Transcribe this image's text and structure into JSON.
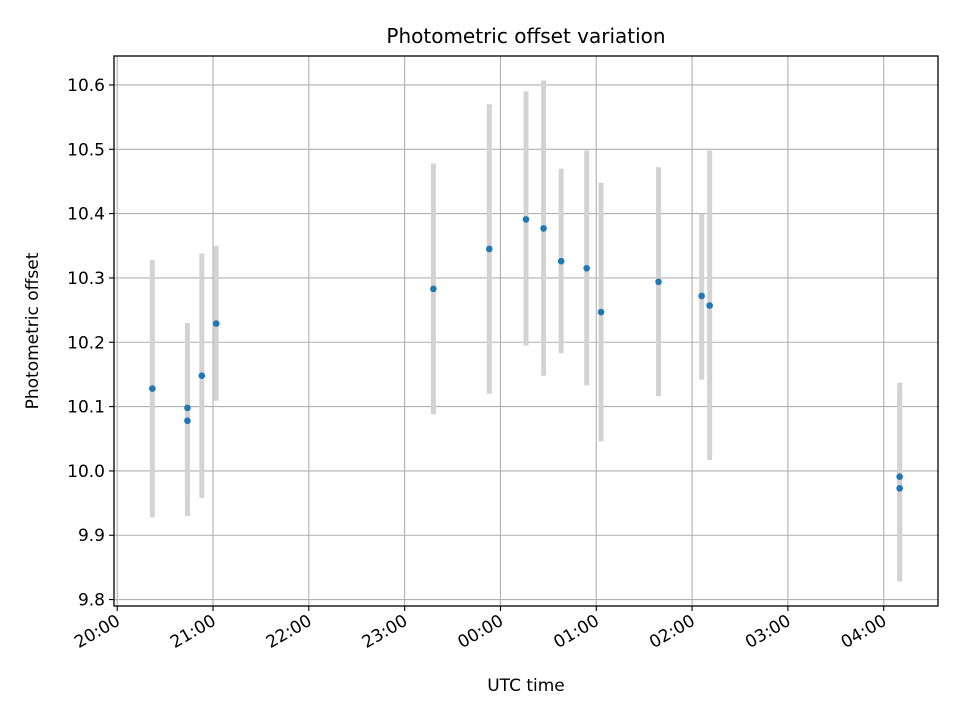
{
  "chart_data": {
    "type": "scatter",
    "title": "Photometric offset variation",
    "xlabel": "UTC time",
    "ylabel": "Photometric offset",
    "x_axis_type": "time",
    "x_start_date": "2021-01-01",
    "xlim": [
      "2021-01-01T19:58",
      "2021-01-02T04:34"
    ],
    "ylim": [
      9.79,
      10.645
    ],
    "x_ticks": [
      "20:00",
      "21:00",
      "22:00",
      "23:00",
      "00:00",
      "01:00",
      "02:00",
      "03:00",
      "04:00"
    ],
    "y_ticks": [
      "9.8",
      "9.9",
      "10.0",
      "10.1",
      "10.2",
      "10.3",
      "10.4",
      "10.5",
      "10.6"
    ],
    "grid": true,
    "marker_color": "#1f77b4",
    "errorbar_color": "#d3d3d3",
    "points": [
      {
        "x": "2021-01-01T20:22",
        "y": 10.128,
        "ylow": 9.928,
        "yhigh": 10.328
      },
      {
        "x": "2021-01-01T20:44",
        "y": 10.098,
        "ylow": 9.93,
        "yhigh": 10.23
      },
      {
        "x": "2021-01-01T20:44",
        "y": 10.078,
        "ylow": 9.963,
        "yhigh": 10.178
      },
      {
        "x": "2021-01-01T20:53",
        "y": 10.148,
        "ylow": 9.958,
        "yhigh": 10.338
      },
      {
        "x": "2021-01-01T21:02",
        "y": 10.229,
        "ylow": 10.109,
        "yhigh": 10.35
      },
      {
        "x": "2021-01-01T23:18",
        "y": 10.283,
        "ylow": 10.088,
        "yhigh": 10.478
      },
      {
        "x": "2021-01-01T23:53",
        "y": 10.345,
        "ylow": 10.12,
        "yhigh": 10.57
      },
      {
        "x": "2021-01-02T00:16",
        "y": 10.391,
        "ylow": 10.195,
        "yhigh": 10.59
      },
      {
        "x": "2021-01-02T00:27",
        "y": 10.377,
        "ylow": 10.148,
        "yhigh": 10.607
      },
      {
        "x": "2021-01-02T00:38",
        "y": 10.326,
        "ylow": 10.183,
        "yhigh": 10.47
      },
      {
        "x": "2021-01-02T00:54",
        "y": 10.315,
        "ylow": 10.133,
        "yhigh": 10.498
      },
      {
        "x": "2021-01-02T01:03",
        "y": 10.247,
        "ylow": 10.046,
        "yhigh": 10.448
      },
      {
        "x": "2021-01-02T01:39",
        "y": 10.294,
        "ylow": 10.116,
        "yhigh": 10.472
      },
      {
        "x": "2021-01-02T02:06",
        "y": 10.272,
        "ylow": 10.142,
        "yhigh": 10.4
      },
      {
        "x": "2021-01-02T02:11",
        "y": 10.257,
        "ylow": 10.017,
        "yhigh": 10.498
      },
      {
        "x": "2021-01-02T04:10",
        "y": 9.991,
        "ylow": 9.845,
        "yhigh": 10.137
      },
      {
        "x": "2021-01-02T04:10",
        "y": 9.973,
        "ylow": 9.828,
        "yhigh": 10.12
      }
    ]
  }
}
